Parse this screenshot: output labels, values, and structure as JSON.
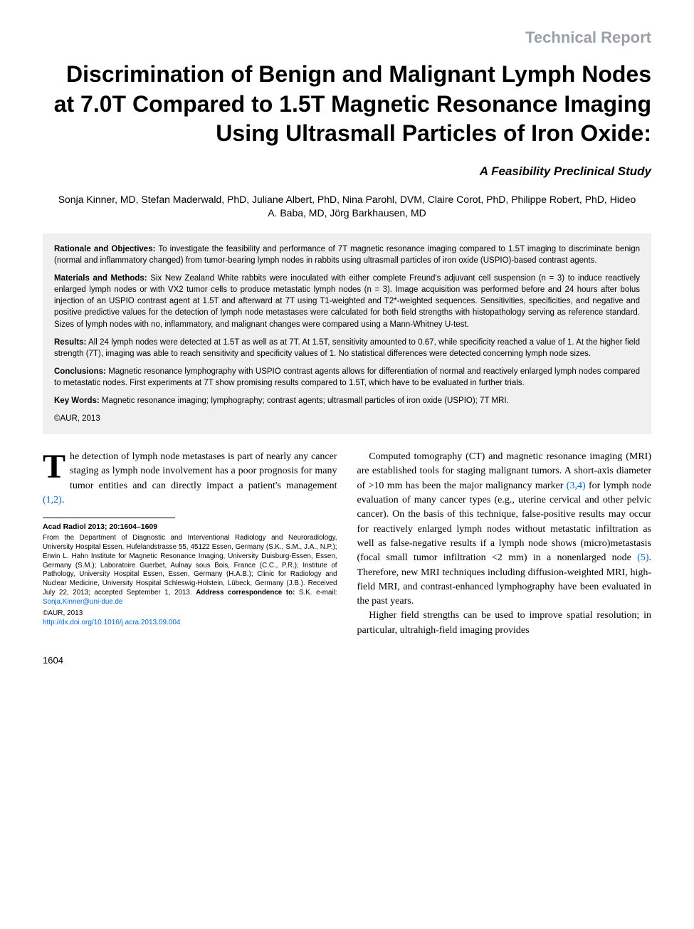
{
  "header": {
    "section_label": "Technical Report"
  },
  "title": "Discrimination of Benign and Malignant Lymph Nodes at 7.0T Compared to 1.5T Magnetic Resonance Imaging Using Ultrasmall Particles of Iron Oxide:",
  "subtitle": "A Feasibility Preclinical Study",
  "authors": "Sonja Kinner, MD, Stefan Maderwald, PhD, Juliane Albert, PhD, Nina Parohl, DVM, Claire Corot, PhD, Philippe Robert, PhD, Hideo A. Baba, MD, Jörg Barkhausen, MD",
  "abstract": {
    "rationale_label": "Rationale and Objectives:",
    "rationale_text": " To investigate the feasibility and performance of 7T magnetic resonance imaging compared to 1.5T imaging to discriminate benign (normal and inflammatory changed) from tumor-bearing lymph nodes in rabbits using ultrasmall particles of iron oxide (USPIO)-based contrast agents.",
    "methods_label": "Materials and Methods:",
    "methods_text": " Six New Zealand White rabbits were inoculated with either complete Freund's adjuvant cell suspension (n = 3) to induce reactively enlarged lymph nodes or with VX2 tumor cells to produce metastatic lymph nodes (n = 3). Image acquisition was performed before and 24 hours after bolus injection of an USPIO contrast agent at 1.5T and afterward at 7T using T1-weighted and T2*-weighted sequences. Sensitivities, specificities, and negative and positive predictive values for the detection of lymph node metastases were calculated for both field strengths with histopathology serving as reference standard. Sizes of lymph nodes with no, inflammatory, and malignant changes were compared using a Mann-Whitney U-test.",
    "results_label": "Results:",
    "results_text": " All 24 lymph nodes were detected at 1.5T as well as at 7T. At 1.5T, sensitivity amounted to 0.67, while specificity reached a value of 1. At the higher field strength (7T), imaging was able to reach sensitivity and specificity values of 1. No statistical differences were detected concerning lymph node sizes.",
    "conclusions_label": "Conclusions:",
    "conclusions_text": " Magnetic resonance lymphography with USPIO contrast agents allows for differentiation of normal and reactively enlarged lymph nodes compared to metastatic nodes. First experiments at 7T show promising results compared to 1.5T, which have to be evaluated in further trials.",
    "keywords_label": "Key Words:",
    "keywords_text": " Magnetic resonance imaging; lymphography; contrast agents; ultrasmall particles of iron oxide (USPIO); 7T MRI.",
    "copyright": "©AUR, 2013"
  },
  "body": {
    "dropcap": "T",
    "intro_rest": "he detection of lymph node metastases is part of nearly any cancer staging as lymph node involvement has a poor prognosis for many tumor entities and can directly impact a patient's management ",
    "intro_ref": "(1,2)",
    "intro_period": ".",
    "col2_p1_a": "Computed tomography (CT) and magnetic resonance imaging (MRI) are established tools for staging malignant tumors. A short-axis diameter of >10 mm has been the major malignancy marker ",
    "col2_p1_ref1": "(3,4)",
    "col2_p1_b": " for lymph node evaluation of many cancer types (e.g., uterine cervical and other pelvic cancer). On the basis of this technique, false-positive results may occur for reactively enlarged lymph nodes without metastatic infiltration as well as false-negative results if a lymph node shows (micro)metastasis (focal small tumor infiltration <2 mm) in a nonenlarged node ",
    "col2_p1_ref2": "(5)",
    "col2_p1_c": ". Therefore, new MRI techniques including diffusion-weighted MRI, high-field MRI, and contrast-enhanced lymphography have been evaluated in the past years.",
    "col2_p2": "Higher field strengths can be used to improve spatial resolution; in particular, ultrahigh-field imaging provides"
  },
  "footer": {
    "journal_info": "Acad Radiol 2013; 20:1604–1609",
    "affiliations_a": "From the Department of Diagnostic and Interventional Radiology and Neuroradiology, University Hospital Essen, Hufelandstrasse 55, 45122 Essen, Germany (S.K., S.M., J.A., N.P.); Erwin L. Hahn Institute for Magnetic Resonance Imaging, University Duisburg-Essen, Essen, Germany (S.M.); Laboratoire Guerbet, Aulnay sous Bois, France (C.C., P.R.); Institute of Pathology, University Hospital Essen, Essen, Germany (H.A.B.); Clinic for Radiology and Nuclear Medicine, University Hospital Schleswig-Holstein, Lübeck, Germany (J.B.). Received July 22, 2013; accepted September 1, 2013. ",
    "affiliations_bold": "Address correspondence to:",
    "affiliations_b": " S.K. e-mail: ",
    "email": "Sonja.Kinner@uni-due.de",
    "copyright": "©AUR, 2013",
    "doi": "http://dx.doi.org/10.1016/j.acra.2013.09.004",
    "page_number": "1604"
  },
  "colors": {
    "section_label": "#9aa0a6",
    "link": "#0066cc",
    "abstract_bg": "#f0f0f0",
    "text": "#000000",
    "page_bg": "#ffffff"
  }
}
